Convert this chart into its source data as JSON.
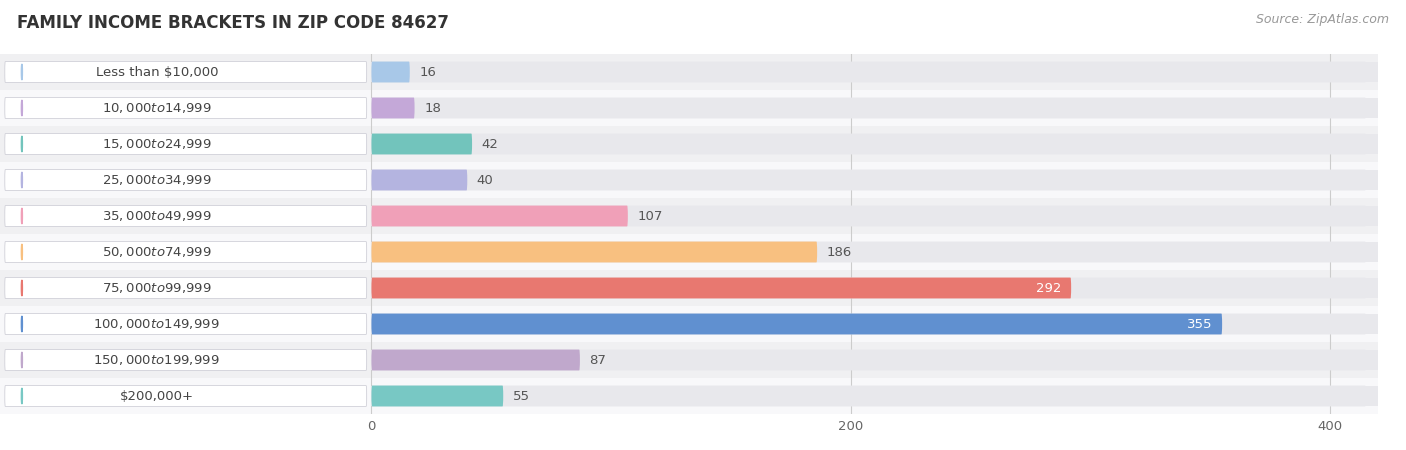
{
  "title": "FAMILY INCOME BRACKETS IN ZIP CODE 84627",
  "source": "Source: ZipAtlas.com",
  "categories": [
    "Less than $10,000",
    "$10,000 to $14,999",
    "$15,000 to $24,999",
    "$25,000 to $34,999",
    "$35,000 to $49,999",
    "$50,000 to $74,999",
    "$75,000 to $99,999",
    "$100,000 to $149,999",
    "$150,000 to $199,999",
    "$200,000+"
  ],
  "values": [
    16,
    18,
    42,
    40,
    107,
    186,
    292,
    355,
    87,
    55
  ],
  "bar_colors": [
    "#a8c8e8",
    "#c4a8d8",
    "#72c4bc",
    "#b4b4e0",
    "#f0a0b8",
    "#f8c080",
    "#e87870",
    "#6090d0",
    "#c0a8cc",
    "#78c8c4"
  ],
  "value_inside": [
    false,
    false,
    false,
    false,
    false,
    false,
    true,
    true,
    false,
    false
  ],
  "xlim_left": -155,
  "xlim_right": 420,
  "xticks": [
    0,
    200,
    400
  ],
  "background_color": "#ffffff",
  "row_colors": [
    "#f0f0f2",
    "#f8f8fa"
  ],
  "bar_bg_color": "#e8e8ec",
  "title_fontsize": 12,
  "source_fontsize": 9,
  "label_fontsize": 9.5,
  "value_fontsize": 9.5,
  "bar_height": 0.58
}
